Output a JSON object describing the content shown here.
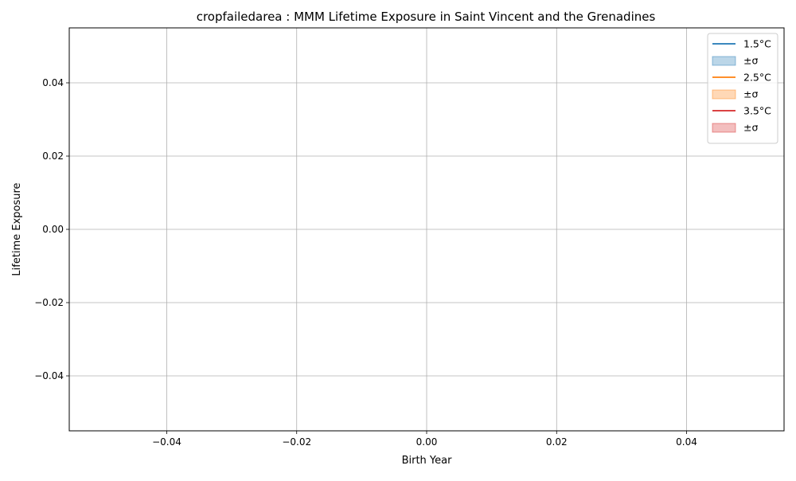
{
  "chart_data": {
    "type": "line",
    "title": "cropfailedarea : MMM Lifetime Exposure in Saint Vincent and the Grenadines",
    "xlabel": "Birth Year",
    "ylabel": "Lifetime Exposure",
    "xlim": [
      -0.055,
      0.055
    ],
    "ylim": [
      -0.055,
      0.055
    ],
    "xticks": [
      -0.04,
      -0.02,
      0.0,
      0.02,
      0.04
    ],
    "yticks": [
      -0.04,
      -0.02,
      0.0,
      0.02,
      0.04
    ],
    "xtick_labels": [
      "−0.04",
      "−0.02",
      "0.00",
      "0.02",
      "0.04"
    ],
    "ytick_labels": [
      "−0.04",
      "−0.02",
      "0.00",
      "0.02",
      "0.04"
    ],
    "grid": true,
    "legend_position": "top-right",
    "series": [
      {
        "name": "1.5°C",
        "x": [],
        "values": [],
        "color": "#1f77b4"
      },
      {
        "name": "2.5°C",
        "x": [],
        "values": [],
        "color": "#ff7f0e"
      },
      {
        "name": "3.5°C",
        "x": [],
        "values": [],
        "color": "#d62728"
      }
    ],
    "legend": [
      {
        "label": "1.5°C",
        "kind": "line",
        "color": "#1f77b4"
      },
      {
        "label": "±σ",
        "kind": "band",
        "color": "#1f77b4"
      },
      {
        "label": "2.5°C",
        "kind": "line",
        "color": "#ff7f0e"
      },
      {
        "label": "±σ",
        "kind": "band",
        "color": "#ff7f0e"
      },
      {
        "label": "3.5°C",
        "kind": "line",
        "color": "#d62728"
      },
      {
        "label": "±σ",
        "kind": "band",
        "color": "#d62728"
      }
    ]
  }
}
